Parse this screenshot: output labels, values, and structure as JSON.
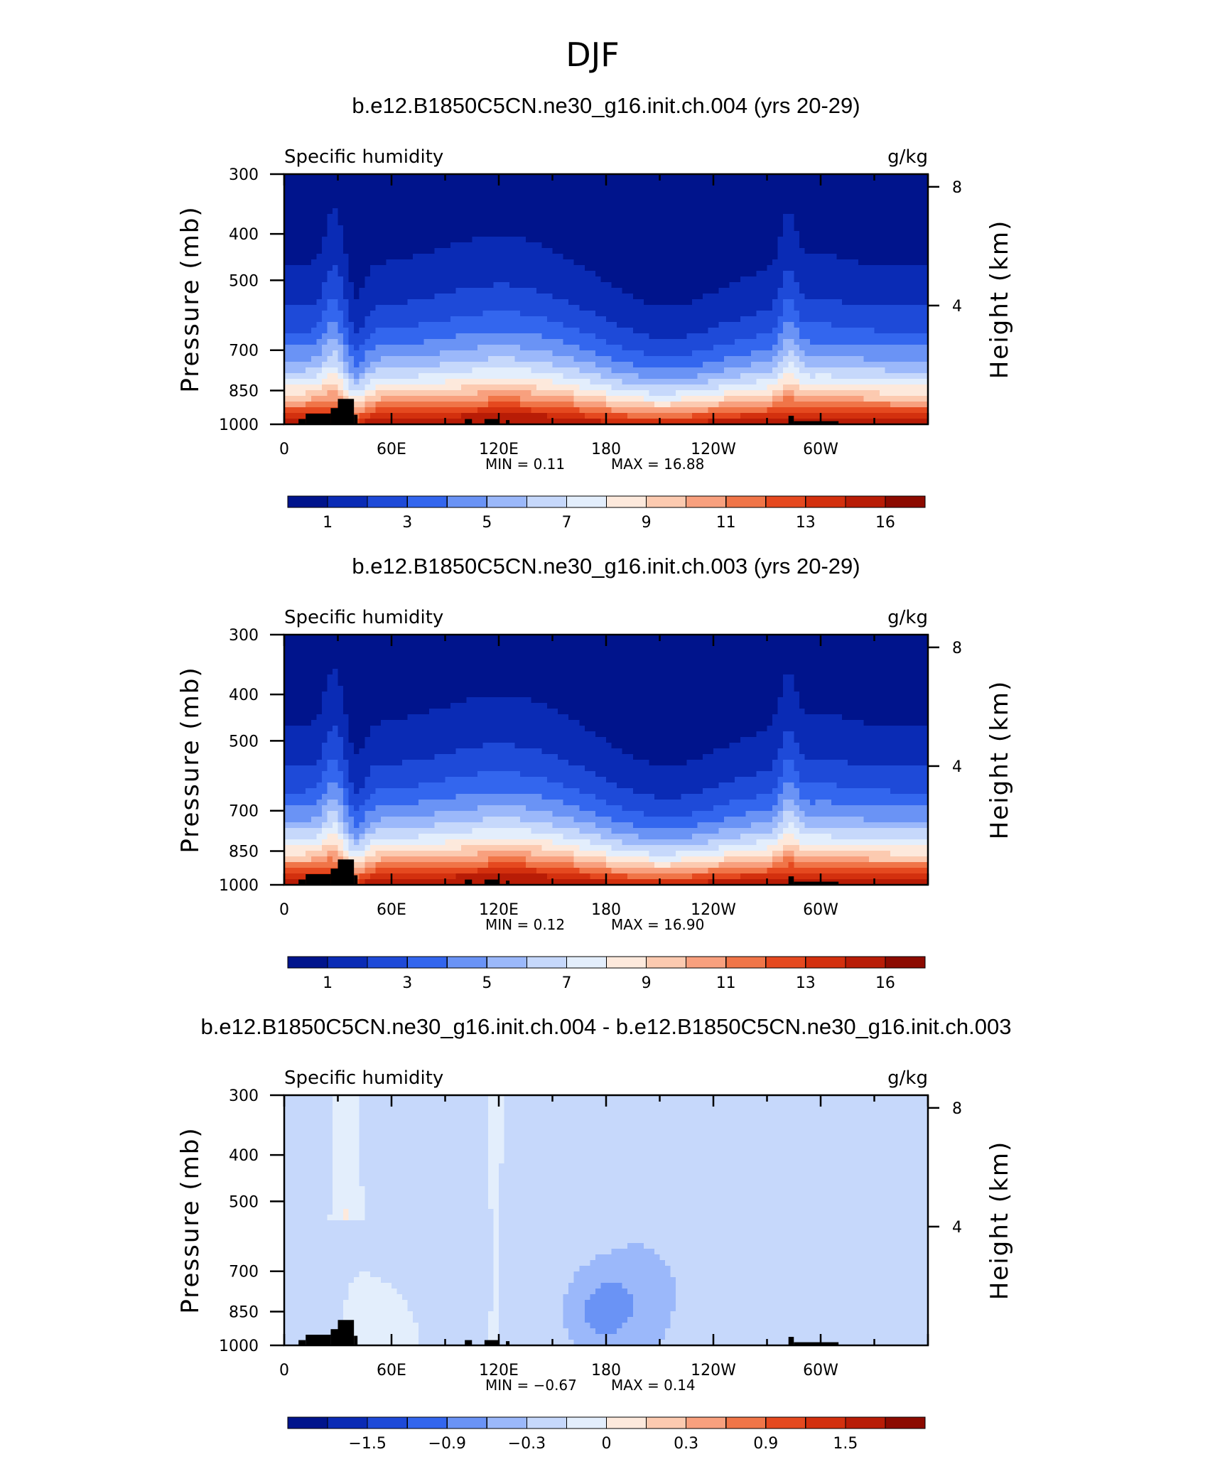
{
  "figure": {
    "title": "DJF"
  },
  "palette": [
    "#00148c",
    "#0a2bb5",
    "#1e4ad8",
    "#3366ee",
    "#6a93f5",
    "#9bb8fa",
    "#c6d8fb",
    "#e3eefc",
    "#fde9dc",
    "#fccab0",
    "#f8a07e",
    "#f07548",
    "#e5491f",
    "#d3300e",
    "#b81c06",
    "#8c0a00"
  ],
  "chart_data": [
    {
      "type": "heatmap",
      "panel_title": "b.e12.B1850C5CN.ne30_g16.init.ch.004 (yrs 20-29)",
      "left_label": "Specific humidity",
      "right_label": "g/kg",
      "ylabel": "Pressure (mb)",
      "ylabel_right": "Height (km)",
      "y_ticks": [
        "300",
        "400",
        "500",
        "700",
        "850",
        "1000"
      ],
      "y_tick_values": [
        300,
        400,
        500,
        700,
        850,
        1000
      ],
      "y_right_ticks": [
        "8",
        "4"
      ],
      "y_right_values": [
        8,
        4
      ],
      "x_ticks": [
        "0",
        "60E",
        "120E",
        "180",
        "120W",
        "60W"
      ],
      "x_tick_values": [
        0,
        60,
        120,
        180,
        240,
        300
      ],
      "xlim": [
        0,
        360
      ],
      "ylim": [
        300,
        1000
      ],
      "min_text": "MIN =    0.11",
      "max_text": "MAX =   16.88",
      "min": 0.11,
      "max": 16.88,
      "colorbar_labels": [
        "1",
        "3",
        "5",
        "7",
        "9",
        "11",
        "13",
        "16"
      ],
      "colorbar_label_values": [
        1,
        3,
        5,
        7,
        9,
        11,
        13,
        16
      ],
      "field": "humidity"
    },
    {
      "type": "heatmap",
      "panel_title": "b.e12.B1850C5CN.ne30_g16.init.ch.003 (yrs 20-29)",
      "left_label": "Specific humidity",
      "right_label": "g/kg",
      "ylabel": "Pressure (mb)",
      "ylabel_right": "Height (km)",
      "y_ticks": [
        "300",
        "400",
        "500",
        "700",
        "850",
        "1000"
      ],
      "y_tick_values": [
        300,
        400,
        500,
        700,
        850,
        1000
      ],
      "y_right_ticks": [
        "8",
        "4"
      ],
      "y_right_values": [
        8,
        4
      ],
      "x_ticks": [
        "0",
        "60E",
        "120E",
        "180",
        "120W",
        "60W"
      ],
      "x_tick_values": [
        0,
        60,
        120,
        180,
        240,
        300
      ],
      "xlim": [
        0,
        360
      ],
      "ylim": [
        300,
        1000
      ],
      "min_text": "MIN =    0.12",
      "max_text": "MAX =   16.90",
      "min": 0.12,
      "max": 16.9,
      "colorbar_labels": [
        "1",
        "3",
        "5",
        "7",
        "9",
        "11",
        "13",
        "16"
      ],
      "colorbar_label_values": [
        1,
        3,
        5,
        7,
        9,
        11,
        13,
        16
      ],
      "field": "humidity"
    },
    {
      "type": "heatmap",
      "panel_title": "b.e12.B1850C5CN.ne30_g16.init.ch.004 - b.e12.B1850C5CN.ne30_g16.init.ch.003",
      "left_label": "Specific humidity",
      "right_label": "g/kg",
      "ylabel": "Pressure (mb)",
      "ylabel_right": "Height (km)",
      "y_ticks": [
        "300",
        "400",
        "500",
        "700",
        "850",
        "1000"
      ],
      "y_tick_values": [
        300,
        400,
        500,
        700,
        850,
        1000
      ],
      "y_right_ticks": [
        "8",
        "4"
      ],
      "y_right_values": [
        8,
        4
      ],
      "x_ticks": [
        "0",
        "60E",
        "120E",
        "180",
        "120W",
        "60W"
      ],
      "x_tick_values": [
        0,
        60,
        120,
        180,
        240,
        300
      ],
      "xlim": [
        0,
        360
      ],
      "ylim": [
        300,
        1000
      ],
      "min_text": "MIN =  −0.67",
      "max_text": "MAX =    0.14",
      "min": -0.67,
      "max": 0.14,
      "colorbar_labels": [
        "−1.5",
        "−0.9",
        "−0.3",
        "0",
        "0.3",
        "0.9",
        "1.5"
      ],
      "colorbar_label_values": [
        -1.5,
        -0.9,
        -0.3,
        0,
        0.3,
        0.9,
        1.5
      ],
      "field": "difference"
    }
  ]
}
